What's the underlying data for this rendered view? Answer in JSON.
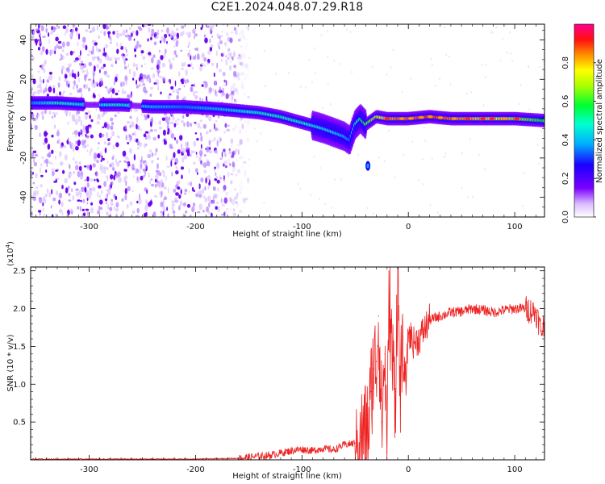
{
  "page": {
    "title": "C2E1.2024.048.07.29.R18"
  },
  "chart_data": [
    {
      "type": "heatmap",
      "xlabel": "Height of straight line (km)",
      "ylabel": "Frequency (Hz)",
      "xlim": [
        -355,
        128
      ],
      "ylim": [
        -50,
        48
      ],
      "xticks": [
        -300,
        -200,
        -100,
        0,
        100
      ],
      "yticks": [
        -40,
        -20,
        0,
        20,
        40
      ],
      "colorbar": {
        "label": "Normalized spectral amplitude",
        "range": [
          0,
          1
        ],
        "ticks": [
          "0.0",
          "0.2",
          "0.4",
          "0.6",
          "0.8"
        ],
        "colors": [
          "#ffffff",
          "#7a00ff",
          "#0000ff",
          "#00e0ff",
          "#00ff40",
          "#ffff00",
          "#ff8000",
          "#ff0000",
          "#ff0090"
        ]
      },
      "ridge": {
        "x": [
          -355,
          -330,
          -300,
          -270,
          -240,
          -210,
          -180,
          -160,
          -140,
          -120,
          -100,
          -80,
          -70,
          -60,
          -55,
          -50,
          -45,
          -40,
          -30,
          -20,
          -10,
          0,
          20,
          40,
          60,
          80,
          100,
          128
        ],
        "y": [
          8,
          8,
          7,
          7,
          6,
          6,
          5,
          4,
          3,
          1,
          -2,
          -5,
          -7,
          -9,
          -11,
          -3,
          0,
          -3,
          1,
          0,
          0,
          0,
          1,
          0,
          0,
          0,
          0,
          -1
        ],
        "amplitude": [
          0.35,
          0.5,
          0.45,
          0.5,
          0.4,
          0.35,
          0.4,
          0.45,
          0.5,
          0.5,
          0.5,
          0.45,
          0.45,
          0.4,
          0.35,
          0.45,
          0.55,
          0.6,
          0.7,
          0.8,
          0.85,
          0.85,
          0.9,
          0.85,
          0.8,
          0.75,
          0.7,
          0.55
        ]
      },
      "isolated_blob": {
        "x": -38,
        "y": -24,
        "amplitude": 0.3
      },
      "noise_region_x": [
        -355,
        -150
      ]
    },
    {
      "type": "line",
      "xlabel": "Height of straight line (km)",
      "ylabel": "SNR (10 * v/v)",
      "yscale_label": "(x10",
      "yscale_exp": "4",
      "yscale_close": ")",
      "xlim": [
        -355,
        128
      ],
      "ylim": [
        0,
        2.55
      ],
      "xticks": [
        -300,
        -200,
        -100,
        0,
        100
      ],
      "yticks": [
        0.5,
        1.0,
        1.5,
        2.0,
        2.5
      ],
      "ytick_labels": [
        "0.5",
        "1.0",
        "1.5",
        "2.0",
        "2.5"
      ],
      "color": "#ee2222",
      "series": [
        {
          "x": [
            -355,
            -300,
            -250,
            -200,
            -160,
            -130,
            -110,
            -100,
            -90,
            -80,
            -70,
            -60,
            -50,
            -45,
            -40,
            -37,
            -35,
            -33,
            -30,
            -28,
            -25,
            -22,
            -20,
            -18,
            -15,
            -12,
            -10,
            -8,
            -5,
            -2,
            0,
            5,
            10,
            15,
            20,
            30,
            40,
            50,
            60,
            70,
            80,
            90,
            100,
            110,
            120,
            125,
            128
          ],
          "y": [
            0.01,
            0.01,
            0.01,
            0.01,
            0.02,
            0.06,
            0.12,
            0.14,
            0.12,
            0.15,
            0.13,
            0.2,
            0.22,
            0.3,
            0.35,
            0.5,
            0.9,
            1.2,
            1.3,
            1.9,
            0.5,
            1.4,
            0.1,
            2.2,
            1.3,
            0.9,
            2.55,
            1.0,
            1.25,
            1.05,
            1.7,
            1.55,
            1.6,
            1.72,
            1.85,
            1.9,
            1.95,
            1.96,
            2.0,
            1.98,
            1.95,
            1.98,
            2.0,
            2.0,
            1.95,
            1.7,
            1.8
          ]
        }
      ]
    }
  ]
}
